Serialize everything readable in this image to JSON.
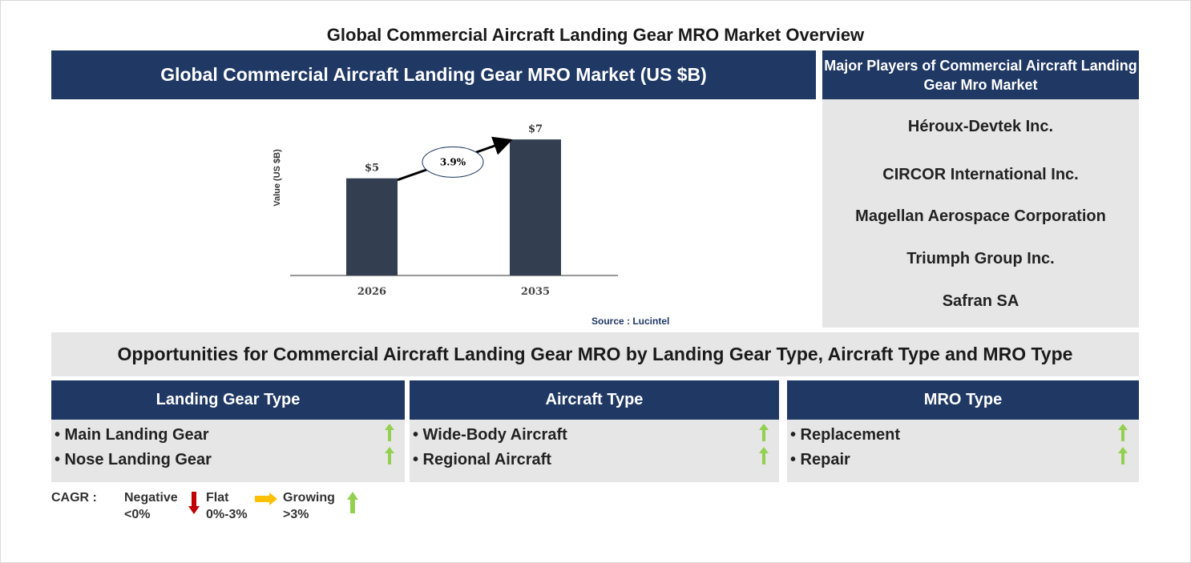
{
  "title": "Global Commercial Aircraft Landing Gear MRO Market Overview",
  "chart_panel": {
    "header": "Global Commercial Aircraft Landing Gear MRO Market (US $B)",
    "source": "Source : Lucintel"
  },
  "chart_data": {
    "type": "bar",
    "categories": [
      "2026",
      "2035"
    ],
    "values": [
      5,
      7
    ],
    "value_labels": [
      "$5",
      "$7"
    ],
    "ylabel": "Value (US $B)",
    "cagr_label": "3.9%",
    "bar_color": "#333f50",
    "ylim": [
      0,
      7.5
    ]
  },
  "players": {
    "header": "Major Players of Commercial Aircraft Landing Gear Mro Market",
    "items": [
      "Héroux-Devtek Inc.",
      "CIRCOR International Inc.",
      "Magellan Aerospace Corporation",
      "Triumph Group Inc.",
      "Safran SA"
    ]
  },
  "opportunities": {
    "title": "Opportunities for Commercial Aircraft Landing Gear MRO by Landing Gear Type, Aircraft Type and MRO Type",
    "segments": [
      {
        "header": "Landing Gear Type",
        "items": [
          "• Main Landing Gear",
          "• Nose Landing Gear"
        ],
        "trends": [
          "growing",
          "growing"
        ]
      },
      {
        "header": "Aircraft Type",
        "items": [
          "• Wide-Body Aircraft",
          "• Regional Aircraft"
        ],
        "trends": [
          "growing",
          "growing"
        ]
      },
      {
        "header": "MRO Type",
        "items": [
          "• Replacement",
          "• Repair"
        ],
        "trends": [
          "growing",
          "growing"
        ]
      }
    ]
  },
  "legend": {
    "label": "CAGR :",
    "negative": {
      "name": "Negative",
      "range": "<0%"
    },
    "flat": {
      "name": "Flat",
      "range": "0%-3%"
    },
    "growing": {
      "name": "Growing",
      "range": ">3%"
    }
  },
  "colors": {
    "navy": "#1f3864",
    "grey_panel": "#e7e6e6",
    "up": "#92d050",
    "down": "#c00000",
    "flat": "#ffc000"
  }
}
